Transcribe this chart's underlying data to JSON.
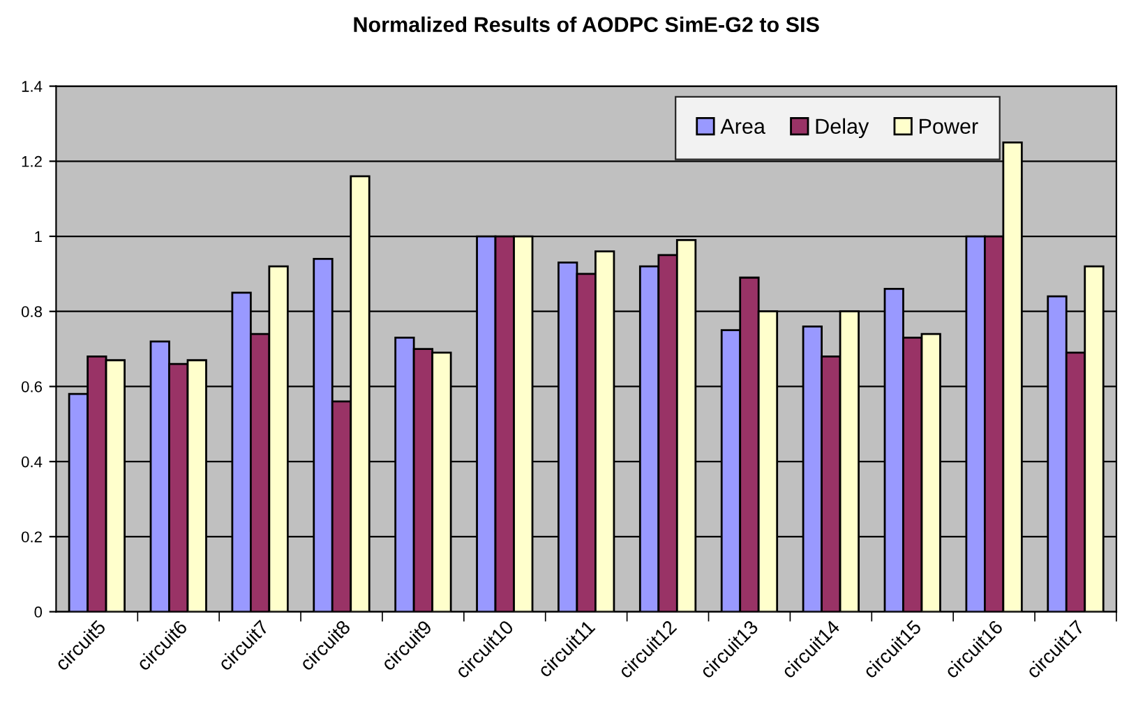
{
  "chart_data": {
    "type": "bar",
    "title": "Normalized Results of AODPC SimE-G2 to SIS",
    "categories": [
      "circuit5",
      "circuit6",
      "circuit7",
      "circuit8",
      "circuit9",
      "circuit10",
      "circuit11",
      "circuit12",
      "circuit13",
      "circuit14",
      "circuit15",
      "circuit16",
      "circuit17"
    ],
    "series": [
      {
        "name": "Area",
        "color": "#9999ff",
        "values": [
          0.58,
          0.72,
          0.85,
          0.94,
          0.73,
          1.0,
          0.93,
          0.92,
          0.75,
          0.76,
          0.86,
          1.0,
          0.84
        ]
      },
      {
        "name": "Delay",
        "color": "#993366",
        "values": [
          0.68,
          0.66,
          0.74,
          0.56,
          0.7,
          1.0,
          0.9,
          0.95,
          0.89,
          0.68,
          0.73,
          1.0,
          0.69
        ]
      },
      {
        "name": "Power",
        "color": "#ffffcc",
        "values": [
          0.67,
          0.67,
          0.92,
          1.16,
          0.69,
          1.0,
          0.96,
          0.99,
          0.8,
          0.8,
          0.74,
          1.25,
          0.92
        ]
      }
    ],
    "ylim": [
      0,
      1.4
    ],
    "yticks": [
      0,
      0.2,
      0.4,
      0.6,
      0.8,
      1,
      1.2,
      1.4
    ],
    "grid": "y",
    "legend": "top right"
  }
}
